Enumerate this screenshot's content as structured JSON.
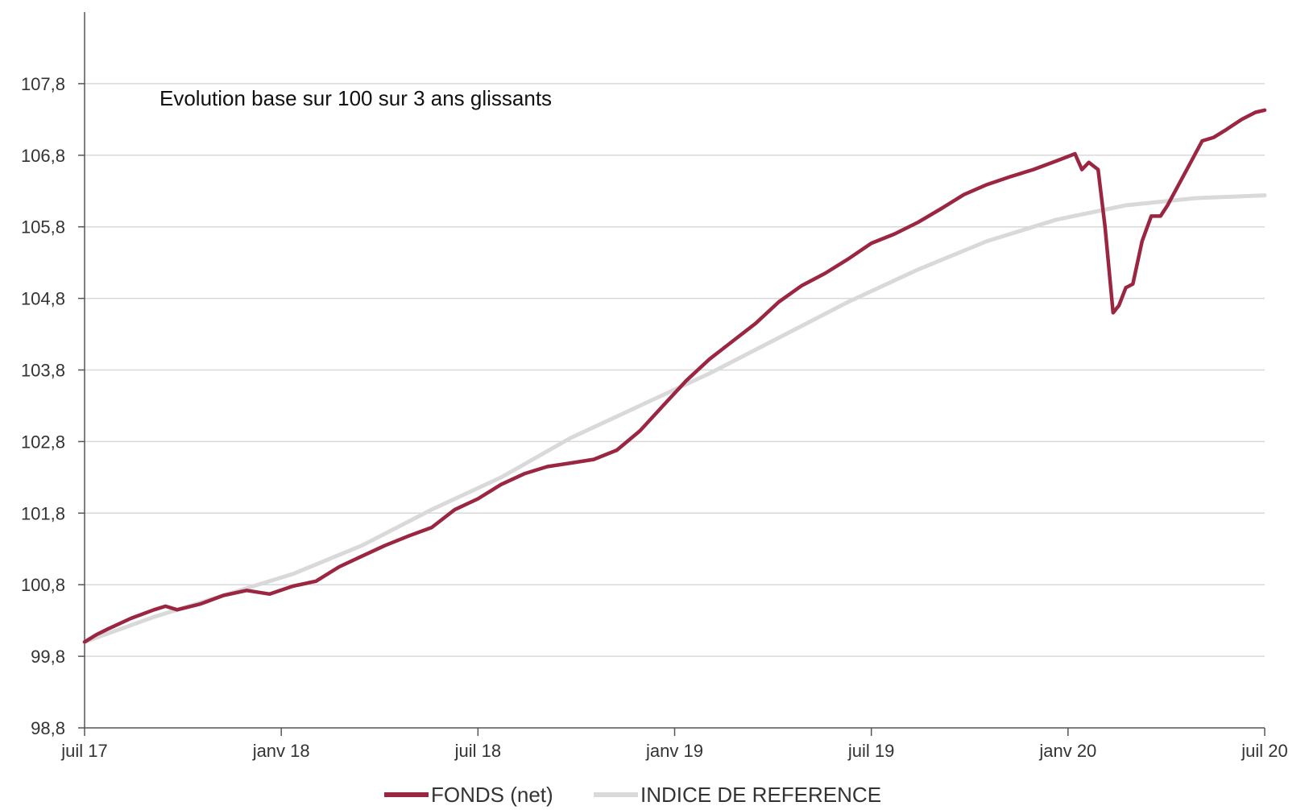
{
  "chart_data": {
    "type": "line",
    "title": "",
    "annotation": "Evolution base sur 100 sur 3 ans glissants",
    "xlabel": "",
    "ylabel": "",
    "x_ticks": [
      "juil 17",
      "janv 18",
      "juil 18",
      "janv 19",
      "juil 19",
      "janv 20",
      "juil 20"
    ],
    "y_ticks": [
      "98,8",
      "99,8",
      "100,8",
      "101,8",
      "102,8",
      "103,8",
      "104,8",
      "105,8",
      "106,8",
      "107,8"
    ],
    "ylim": [
      98.8,
      108.8
    ],
    "xlim_months": [
      0,
      36
    ],
    "grid": true,
    "legend_position": "bottom",
    "series": [
      {
        "name": "FONDS (net)",
        "color": "#9b2642",
        "points": [
          [
            0,
            100.0
          ],
          [
            0.5,
            100.1
          ],
          [
            1,
            100.18
          ],
          [
            2,
            100.33
          ],
          [
            3,
            100.45
          ],
          [
            3.5,
            100.5
          ],
          [
            4,
            100.45
          ],
          [
            5,
            100.53
          ],
          [
            6,
            100.65
          ],
          [
            7,
            100.72
          ],
          [
            8,
            100.67
          ],
          [
            9,
            100.78
          ],
          [
            10,
            100.85
          ],
          [
            11,
            101.05
          ],
          [
            12,
            101.2
          ],
          [
            13,
            101.35
          ],
          [
            14,
            101.48
          ],
          [
            15,
            101.6
          ],
          [
            16,
            101.85
          ],
          [
            17,
            102.0
          ],
          [
            18,
            102.2
          ],
          [
            19,
            102.35
          ],
          [
            20,
            102.45
          ],
          [
            21,
            102.5
          ],
          [
            22,
            102.55
          ],
          [
            23,
            102.68
          ],
          [
            24,
            102.95
          ],
          [
            25,
            103.3
          ],
          [
            26,
            103.65
          ],
          [
            27,
            103.95
          ],
          [
            28,
            104.2
          ],
          [
            29,
            104.45
          ],
          [
            30,
            104.75
          ],
          [
            31,
            104.98
          ],
          [
            32,
            105.15
          ],
          [
            33,
            105.35
          ],
          [
            34,
            105.57
          ],
          [
            35,
            105.7
          ],
          [
            36,
            105.86
          ],
          [
            37,
            106.05
          ],
          [
            38,
            106.25
          ],
          [
            39,
            106.39
          ],
          [
            40,
            106.5
          ],
          [
            41,
            106.6
          ],
          [
            42,
            106.72
          ],
          [
            42.8,
            106.82
          ],
          [
            43.1,
            106.6
          ],
          [
            43.4,
            106.7
          ],
          [
            43.8,
            106.6
          ],
          [
            44.1,
            105.8
          ],
          [
            44.45,
            104.6
          ],
          [
            44.7,
            104.7
          ],
          [
            45,
            104.95
          ],
          [
            45.3,
            105.0
          ],
          [
            45.7,
            105.6
          ],
          [
            46.1,
            105.95
          ],
          [
            46.5,
            105.95
          ],
          [
            46.8,
            106.1
          ],
          [
            47.3,
            106.4
          ],
          [
            47.8,
            106.7
          ],
          [
            48.3,
            107.0
          ],
          [
            48.8,
            107.05
          ],
          [
            49.3,
            107.15
          ],
          [
            50,
            107.3
          ],
          [
            50.6,
            107.4
          ],
          [
            51,
            107.43
          ]
        ]
      },
      {
        "name": "INDICE DE REFERENCE",
        "color": "#d9d9d9",
        "points": [
          [
            0,
            100.0
          ],
          [
            3,
            100.35
          ],
          [
            6,
            100.65
          ],
          [
            9,
            100.95
          ],
          [
            12,
            101.35
          ],
          [
            15,
            101.85
          ],
          [
            18,
            102.3
          ],
          [
            21,
            102.85
          ],
          [
            24,
            103.3
          ],
          [
            27,
            103.75
          ],
          [
            30,
            104.25
          ],
          [
            33,
            104.75
          ],
          [
            36,
            105.2
          ],
          [
            39,
            105.6
          ],
          [
            42,
            105.9
          ],
          [
            45,
            106.1
          ],
          [
            48,
            106.2
          ],
          [
            51,
            106.24
          ]
        ]
      }
    ],
    "x_scale_note": ""
  }
}
